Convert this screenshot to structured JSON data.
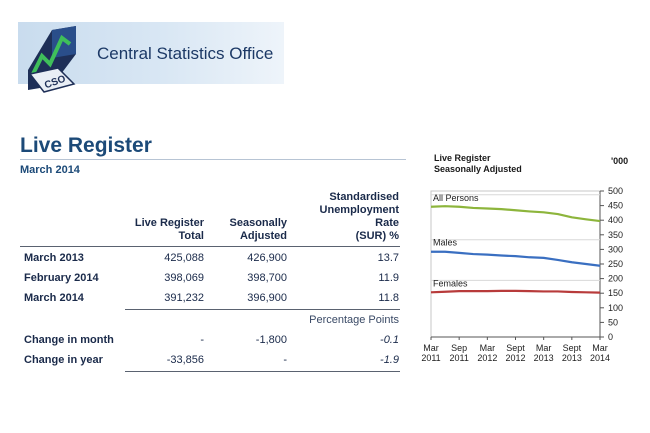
{
  "header": {
    "org_name": "Central Statistics Office",
    "logo_text": "CSO"
  },
  "page": {
    "title": "Live Register",
    "subtitle": "March 2014"
  },
  "table": {
    "columns": {
      "live_register": [
        "Live Register",
        "Total"
      ],
      "seasonally_adjusted": [
        "Seasonally",
        "Adjusted"
      ],
      "sur": [
        "Standardised",
        "Unemployment",
        "Rate",
        "(SUR) %"
      ]
    },
    "rows": [
      {
        "label": "March 2013",
        "total": "425,088",
        "sa": "426,900",
        "sur": "13.7"
      },
      {
        "label": "February 2014",
        "total": "398,069",
        "sa": "398,700",
        "sur": "11.9"
      },
      {
        "label": "March 2014",
        "total": "391,232",
        "sa": "396,900",
        "sur": "11.8"
      }
    ],
    "percentage_points_label": "Percentage Points",
    "change_rows": [
      {
        "label": "Change in month",
        "total": "-",
        "sa": "-1,800",
        "sur": "-0.1"
      },
      {
        "label": "Change in year",
        "total": "-33,856",
        "sa": "-",
        "sur": "-1.9"
      }
    ]
  },
  "chart_data": {
    "type": "line",
    "title": "Live Register\nSeasonally Adjusted",
    "title_lines": [
      "Live Register",
      "Seasonally Adjusted"
    ],
    "unit": "'000",
    "ylim": [
      0,
      500
    ],
    "yticks": [
      0,
      50,
      100,
      150,
      200,
      250,
      300,
      350,
      400,
      450,
      500
    ],
    "xlim": [
      0,
      36
    ],
    "xticks": [
      {
        "x": 0,
        "label": [
          "Mar",
          "2011"
        ]
      },
      {
        "x": 6,
        "label": [
          "Sep",
          "2011"
        ]
      },
      {
        "x": 12,
        "label": [
          "Mar",
          "2012"
        ]
      },
      {
        "x": 18,
        "label": [
          "Sept",
          "2012"
        ]
      },
      {
        "x": 24,
        "label": [
          "Mar",
          "2013"
        ]
      },
      {
        "x": 30,
        "label": [
          "Sept",
          "2013"
        ]
      },
      {
        "x": 36,
        "label": [
          "Mar",
          "2014"
        ]
      }
    ],
    "grid": false,
    "series": [
      {
        "name": "All Persons",
        "color": "#8db53c",
        "x": [
          0,
          3,
          6,
          9,
          12,
          15,
          18,
          21,
          24,
          27,
          30,
          33,
          36
        ],
        "values": [
          446,
          448,
          446,
          442,
          440,
          438,
          434,
          430,
          427,
          421,
          410,
          403,
          397
        ]
      },
      {
        "name": "Males",
        "color": "#3a6fc1",
        "x": [
          0,
          3,
          6,
          9,
          12,
          15,
          18,
          21,
          24,
          27,
          30,
          33,
          36
        ],
        "values": [
          292,
          292,
          288,
          284,
          282,
          279,
          277,
          273,
          271,
          264,
          256,
          250,
          244
        ]
      },
      {
        "name": "Females",
        "color": "#b83b3b",
        "x": [
          0,
          3,
          6,
          9,
          12,
          15,
          18,
          21,
          24,
          27,
          30,
          33,
          36
        ],
        "values": [
          153,
          155,
          157,
          157,
          157,
          158,
          158,
          157,
          156,
          156,
          154,
          153,
          152
        ]
      }
    ]
  }
}
